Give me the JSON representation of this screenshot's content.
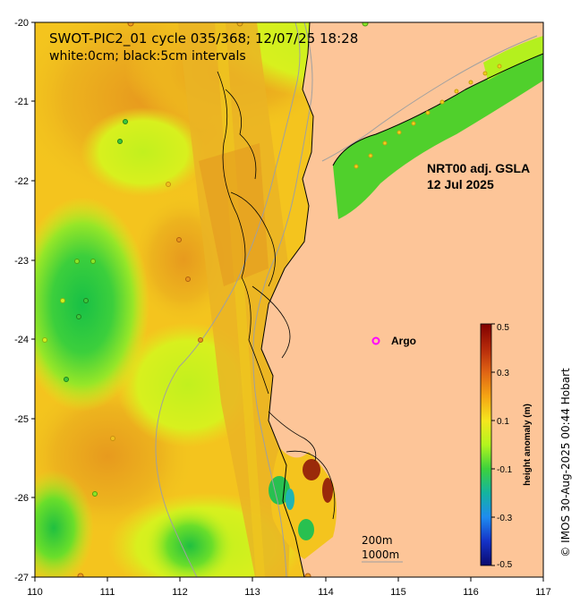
{
  "title": {
    "line1": "SWOT-PIC2_01 cycle 035/368; 12/07/25 18:28",
    "line2": "white:0cm; black:5cm intervals"
  },
  "product": {
    "line1": "NRT00 adj. GSLA",
    "line2": "12 Jul 2025"
  },
  "argo": {
    "label": "Argo",
    "marker_color": "#ff00ff"
  },
  "depth_legend": {
    "line1": "200m",
    "line2": "1000m"
  },
  "credit": "© IMOS 30-Aug-2025 00:44 Hobart",
  "colorbar": {
    "title": "height anomaly (m)",
    "ticks": [
      "0.5",
      "0.3",
      "0.1",
      "-0.1",
      "-0.3",
      "-0.5"
    ],
    "stops": [
      "#800000",
      "#d22a0a",
      "#f59a10",
      "#f5d21e",
      "#d2ff1e",
      "#78f01e",
      "#14c83c",
      "#14b4b4",
      "#1e90ff",
      "#1432c8",
      "#0a0a6e"
    ]
  },
  "axes": {
    "x_ticks": [
      "110",
      "111",
      "112",
      "113",
      "114",
      "115",
      "116",
      "117"
    ],
    "y_ticks": [
      "-20",
      "-21",
      "-22",
      "-23",
      "-24",
      "-25",
      "-26",
      "-27"
    ],
    "lon_range": [
      110,
      117
    ],
    "lat_range": [
      -27,
      -20
    ]
  },
  "colors": {
    "land": "#fdc598",
    "ocean_base": "#f5c81e",
    "high_anomaly": "#e8a020",
    "low_anomaly": "#3cc83c",
    "mid_anomaly": "#c8f01e",
    "swath": "#e8b828",
    "coastline": "#000000",
    "bathymetry": "#a0a0a0"
  }
}
